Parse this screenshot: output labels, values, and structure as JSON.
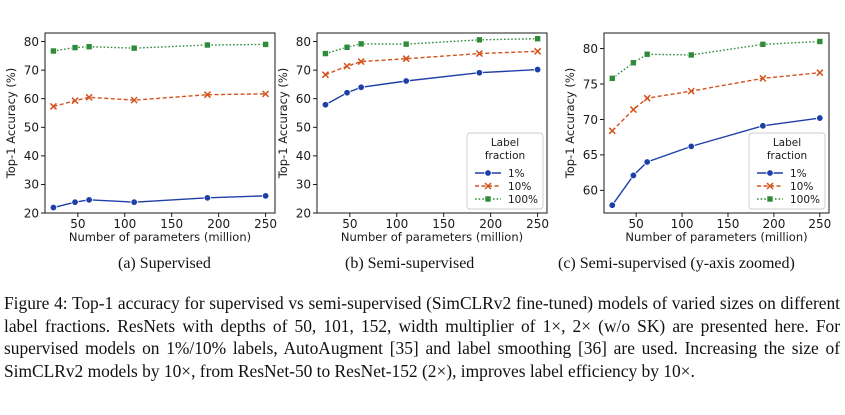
{
  "chart_data": [
    {
      "type": "line",
      "xlabel": "Number of parameters (million)",
      "ylabel": "Top-1 Accuracy (%)",
      "xlim": [
        15,
        260
      ],
      "ylim": [
        20,
        83
      ],
      "xticks": [
        50,
        100,
        150,
        200,
        250
      ],
      "yticks": [
        20,
        30,
        40,
        50,
        60,
        70,
        80
      ],
      "grid": false,
      "legend": "none",
      "x": [
        24,
        47,
        62,
        110,
        188,
        250
      ],
      "series": [
        {
          "name": "1%",
          "color": "#1f3fa8",
          "marker": "circle",
          "values": [
            21.9,
            23.8,
            24.6,
            23.8,
            25.3,
            26.0
          ]
        },
        {
          "name": "10%",
          "color": "#d4521b",
          "marker": "x",
          "values": [
            57.3,
            59.3,
            60.5,
            59.5,
            61.4,
            61.7
          ]
        },
        {
          "name": "100%",
          "color": "#2e8b3a",
          "marker": "square",
          "values": [
            76.7,
            77.9,
            78.2,
            77.7,
            78.8,
            79.0
          ]
        }
      ],
      "subcaption": "(a) Supervised"
    },
    {
      "type": "line",
      "xlabel": "Number of parameters (million)",
      "ylabel": "Top-1 Accuracy (%)",
      "xlim": [
        15,
        260
      ],
      "ylim": [
        20,
        83
      ],
      "xticks": [
        50,
        100,
        150,
        200,
        250
      ],
      "yticks": [
        20,
        30,
        40,
        50,
        60,
        70,
        80
      ],
      "grid": false,
      "legend": "bottom-right",
      "legend_title": "Label fraction",
      "x": [
        24,
        47,
        62,
        110,
        188,
        250
      ],
      "series": [
        {
          "name": "1%",
          "color": "#1f3fa8",
          "marker": "circle",
          "values": [
            57.9,
            62.1,
            64.0,
            66.2,
            69.1,
            70.2
          ]
        },
        {
          "name": "10%",
          "color": "#d4521b",
          "marker": "x",
          "values": [
            68.4,
            71.4,
            73.0,
            74.0,
            75.8,
            76.6
          ]
        },
        {
          "name": "100%",
          "color": "#2e8b3a",
          "marker": "square",
          "values": [
            75.8,
            78.0,
            79.2,
            79.1,
            80.6,
            81.0
          ]
        }
      ],
      "subcaption": "(b) Semi-supervised"
    },
    {
      "type": "line",
      "xlabel": "Number of parameters (million)",
      "ylabel": "Top-1 Accuracy (%)",
      "xlim": [
        15,
        260
      ],
      "ylim": [
        56.8,
        82.2
      ],
      "xticks": [
        50,
        100,
        150,
        200,
        250
      ],
      "yticks": [
        60,
        65,
        70,
        75,
        80
      ],
      "grid": false,
      "legend": "bottom-right",
      "legend_title": "Label fraction",
      "x": [
        24,
        47,
        62,
        110,
        188,
        250
      ],
      "series": [
        {
          "name": "1%",
          "color": "#1f3fa8",
          "marker": "circle",
          "values": [
            57.9,
            62.1,
            64.0,
            66.2,
            69.1,
            70.2
          ]
        },
        {
          "name": "10%",
          "color": "#d4521b",
          "marker": "x",
          "values": [
            68.4,
            71.4,
            73.0,
            74.0,
            75.8,
            76.6
          ]
        },
        {
          "name": "100%",
          "color": "#2e8b3a",
          "marker": "square",
          "values": [
            75.8,
            78.0,
            79.2,
            79.1,
            80.6,
            81.0
          ]
        }
      ],
      "subcaption": "(c) Semi-supervised (y-axis zoomed)"
    }
  ],
  "caption": "Figure 4:  Top-1 accuracy for supervised vs semi-supervised (SimCLRv2 fine-tuned) models of varied sizes on different label fractions. ResNets with depths of 50, 101, 152, width multiplier of 1×, 2× (w/o SK) are presented here. For supervised models on 1%/10% labels, AutoAugment [35] and label smoothing [36] are used. Increasing the size of SimCLRv2 models by 10×, from ResNet-50 to ResNet-152 (2×), improves label efficiency by 10×."
}
